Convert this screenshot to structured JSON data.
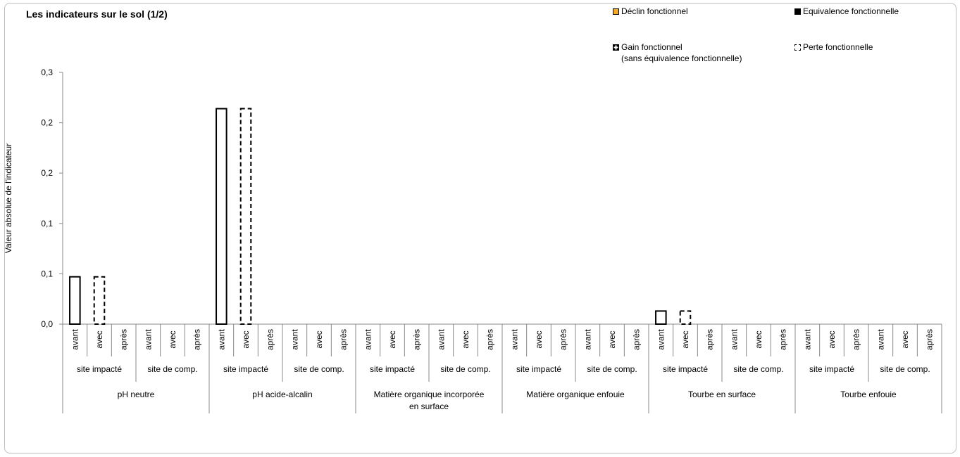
{
  "chart_data": {
    "type": "bar",
    "title": "Les indicateurs sur le sol (1/2)",
    "ylabel": "Valeur absolue de l'indicateur",
    "xlabel": "",
    "ylim": [
      0,
      0.25
    ],
    "y_tick_labels": [
      "0,0",
      "0,1",
      "0,1",
      "0,2",
      "0,2",
      "0,3"
    ],
    "grid": false,
    "legend_position": "top-right",
    "legend": [
      {
        "label": "Déclin fonctionnel",
        "style": "declin",
        "color": "#f5a623"
      },
      {
        "label": "Equivalence fonctionnelle",
        "style": "equivalence",
        "color": "#000000"
      },
      {
        "label": "Gain fonctionnel",
        "label2": "(sans équivalence fonctionnelle)",
        "style": "gain",
        "color": "#000000"
      },
      {
        "label": "Perte fonctionnelle",
        "style": "perte",
        "color": "#000000"
      }
    ],
    "groups": [
      {
        "name": "pH neutre",
        "name_lines": [
          "pH neutre"
        ],
        "values": [
          0.047,
          0.047,
          0,
          0,
          0,
          0
        ],
        "styles": [
          "solid",
          "dashed",
          "none",
          "none",
          "none",
          "none"
        ]
      },
      {
        "name": "pH acide-alcalin",
        "name_lines": [
          "pH acide-alcalin"
        ],
        "values": [
          0.214,
          0.214,
          0,
          0,
          0,
          0
        ],
        "styles": [
          "solid",
          "dashed",
          "none",
          "none",
          "none",
          "none"
        ]
      },
      {
        "name": "Matière organique incorporée en surface",
        "name_lines": [
          "Matière organique incorporée",
          "en surface"
        ],
        "values": [
          0,
          0,
          0,
          0,
          0,
          0
        ],
        "styles": [
          "none",
          "none",
          "none",
          "none",
          "none",
          "none"
        ]
      },
      {
        "name": "Matière organique enfouie",
        "name_lines": [
          "Matière organique enfouie"
        ],
        "values": [
          0,
          0,
          0,
          0,
          0,
          0
        ],
        "styles": [
          "none",
          "none",
          "none",
          "none",
          "none",
          "none"
        ]
      },
      {
        "name": "Tourbe en surface",
        "name_lines": [
          "Tourbe en surface"
        ],
        "values": [
          0.013,
          0.013,
          0,
          0,
          0,
          0
        ],
        "styles": [
          "solid",
          "dashed",
          "none",
          "none",
          "none",
          "none"
        ]
      },
      {
        "name": "Tourbe enfouie",
        "name_lines": [
          "Tourbe enfouie"
        ],
        "values": [
          0,
          0,
          0,
          0,
          0,
          0
        ],
        "styles": [
          "none",
          "none",
          "none",
          "none",
          "none",
          "none"
        ]
      }
    ],
    "sites": [
      "site impacté",
      "site de comp."
    ],
    "periods": [
      "avant",
      "avec",
      "après"
    ]
  }
}
